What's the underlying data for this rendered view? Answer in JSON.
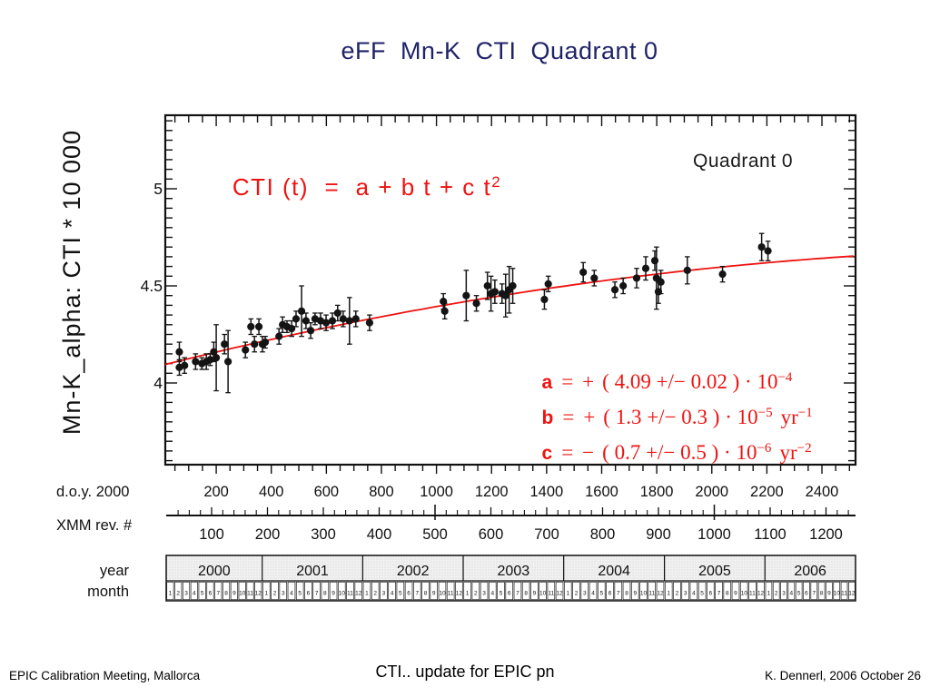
{
  "slide": {
    "title": "eFF  Mn-K  CTI  Quadrant 0",
    "footer_left": "EPIC Calibration Meeting, Mallorca",
    "footer_center": "CTI.. update for EPIC pn",
    "footer_right": "K. Dennerl, 2006 October 26"
  },
  "colors": {
    "accent_red": "#ee1310",
    "title_navy": "#1f2368",
    "ink": "#111111",
    "stipple_bg": "#f1f1f1",
    "stipple_dot": "#c9c9c9"
  },
  "chart_data": {
    "type": "scatter",
    "annotation": "Quadrant 0",
    "equation": {
      "lhs": "CTI (t)",
      "eq": "=",
      "rhs": "a + b t + c t",
      "sup": "2"
    },
    "fit_params": [
      {
        "name": "a",
        "eq": "=",
        "sign": "+",
        "body": "( 4.09 +/− 0.02 ) · 10",
        "exp": "−4",
        "unit": "",
        "unit_exp": ""
      },
      {
        "name": "b",
        "eq": "=",
        "sign": "+",
        "body": "( 1.3 +/− 0.3 ) · 10",
        "exp": "−5",
        "unit": "yr",
        "unit_exp": "−1"
      },
      {
        "name": "c",
        "eq": "=",
        "sign": "−",
        "body": "( 0.7 +/− 0.5 ) · 10",
        "exp": "−6",
        "unit": "yr",
        "unit_exp": "−2"
      }
    ],
    "ylabel": "Mn-K_alpha: CTI * 10 000",
    "y_ticks": [
      4,
      4.5,
      5
    ],
    "ylim": [
      3.58,
      5.38
    ],
    "axes": {
      "doy": {
        "title": "d.o.y. 2000",
        "ticks": [
          200,
          400,
          600,
          800,
          1000,
          1200,
          1400,
          1600,
          1800,
          2000,
          2200,
          2400
        ],
        "lim": [
          15,
          2522
        ]
      },
      "rev": {
        "title": "XMM rev. #",
        "ticks": [
          100,
          200,
          300,
          400,
          500,
          600,
          700,
          800,
          900,
          1000,
          1100,
          1200
        ]
      },
      "year": {
        "title": "year",
        "labels": [
          "2000",
          "2001",
          "2002",
          "2003",
          "2004",
          "2005",
          "2006"
        ]
      },
      "month": {
        "title": "month",
        "labels": [
          "1",
          "2",
          "3",
          "4",
          "5",
          "6",
          "7",
          "8",
          "9",
          "10",
          "11",
          "12"
        ]
      }
    },
    "fit_curve": {
      "a": 4.09,
      "b": 0.13,
      "c": -0.007,
      "t_unit_days": 365.25
    },
    "points": [
      [
        66,
        4.16,
        0.05
      ],
      [
        66,
        4.08,
        0.04
      ],
      [
        85,
        4.09,
        0.04
      ],
      [
        125,
        4.11,
        0.04
      ],
      [
        148,
        4.1,
        0.03
      ],
      [
        164,
        4.11,
        0.04
      ],
      [
        178,
        4.12,
        0.03
      ],
      [
        191,
        4.16,
        0.05
      ],
      [
        200,
        4.13,
        0.17
      ],
      [
        230,
        4.2,
        0.05
      ],
      [
        243,
        4.11,
        0.16
      ],
      [
        306,
        4.17,
        0.04
      ],
      [
        326,
        4.29,
        0.04
      ],
      [
        339,
        4.2,
        0.04
      ],
      [
        355,
        4.29,
        0.04
      ],
      [
        368,
        4.2,
        0.04
      ],
      [
        378,
        4.21,
        0.03
      ],
      [
        428,
        4.24,
        0.04
      ],
      [
        441,
        4.3,
        0.04
      ],
      [
        457,
        4.29,
        0.03
      ],
      [
        474,
        4.28,
        0.04
      ],
      [
        490,
        4.33,
        0.04
      ],
      [
        510,
        4.37,
        0.13
      ],
      [
        526,
        4.32,
        0.04
      ],
      [
        543,
        4.27,
        0.04
      ],
      [
        559,
        4.33,
        0.03
      ],
      [
        579,
        4.32,
        0.04
      ],
      [
        599,
        4.31,
        0.04
      ],
      [
        622,
        4.32,
        0.04
      ],
      [
        641,
        4.36,
        0.04
      ],
      [
        661,
        4.33,
        0.04
      ],
      [
        684,
        4.32,
        0.12
      ],
      [
        707,
        4.33,
        0.04
      ],
      [
        757,
        4.31,
        0.04
      ],
      [
        1025,
        4.42,
        0.04
      ],
      [
        1030,
        4.37,
        0.04
      ],
      [
        1108,
        4.45,
        0.13
      ],
      [
        1145,
        4.41,
        0.04
      ],
      [
        1185,
        4.5,
        0.07
      ],
      [
        1198,
        4.46,
        0.09
      ],
      [
        1212,
        4.47,
        0.06
      ],
      [
        1238,
        4.46,
        0.05
      ],
      [
        1251,
        4.45,
        0.11
      ],
      [
        1264,
        4.48,
        0.12
      ],
      [
        1277,
        4.5,
        0.09
      ],
      [
        1392,
        4.43,
        0.05
      ],
      [
        1406,
        4.51,
        0.04
      ],
      [
        1533,
        4.57,
        0.05
      ],
      [
        1573,
        4.54,
        0.04
      ],
      [
        1648,
        4.48,
        0.04
      ],
      [
        1678,
        4.5,
        0.04
      ],
      [
        1727,
        4.54,
        0.05
      ],
      [
        1760,
        4.59,
        0.06
      ],
      [
        1793,
        4.63,
        0.05
      ],
      [
        1799,
        4.54,
        0.16
      ],
      [
        1806,
        4.47,
        0.06
      ],
      [
        1815,
        4.52,
        0.06
      ],
      [
        1911,
        4.58,
        0.07
      ],
      [
        2039,
        4.56,
        0.04
      ],
      [
        2181,
        4.7,
        0.07
      ],
      [
        2204,
        4.68,
        0.05
      ]
    ]
  }
}
